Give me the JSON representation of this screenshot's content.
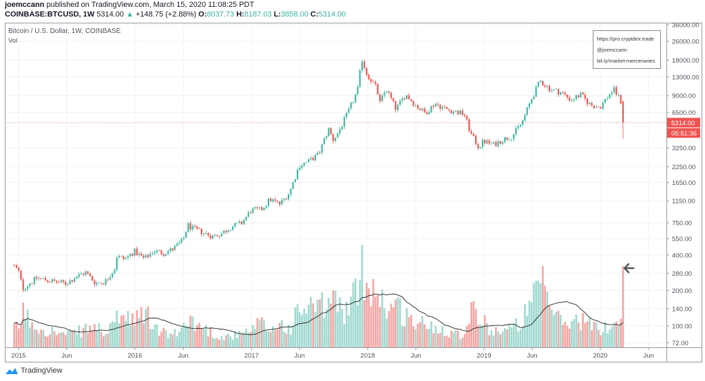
{
  "header": {
    "author": "joemccann",
    "published": "published on TradingView.com, March 15, 2020 11:08:25 PDT",
    "symbol": "COINBASE:BTCUSD, 1W",
    "last": "5314.00",
    "change": "+148.75 (+2.88%)",
    "o_label": "O:",
    "o_value": "8037.73",
    "h_label": "H:",
    "h_value": "8187.03",
    "l_label": "L:",
    "l_value": "3858.00",
    "c_label": "C:",
    "c_value": "5314.00",
    "change_icon": "triangle-up-icon"
  },
  "legend": {
    "title": "Bitcoin / U.S. Dollar, 1W, COINBASE",
    "vol": "Vol"
  },
  "info_box": [
    "https://pro.cryptdex.trade",
    "@joemccann",
    "bit.ly/market-mercenaries"
  ],
  "price_badge": {
    "price": "5314.00",
    "countdown": "05:51:36"
  },
  "annotation_icon": "arrow-left-icon",
  "footer": {
    "brand": "TradingView"
  },
  "colors": {
    "up": "#3cb8a0",
    "down": "#ef5350",
    "up_vol": "#9fd9cf",
    "down_vol": "#f3a5a3",
    "grid": "#eef0f3",
    "ma": "#222222"
  },
  "chart_data": {
    "type": "candlestick",
    "title": "Bitcoin / U.S. Dollar, 1W, COINBASE",
    "interval": "1W",
    "yscale": "log",
    "ylim": [
      72,
      36000
    ],
    "grid": true,
    "y_ticks": [
      36000,
      26000,
      18000,
      13000,
      9000,
      6500,
      3250,
      2250,
      1650,
      1150,
      750,
      550,
      400,
      280,
      200,
      140,
      100,
      72
    ],
    "y_tick_labels": [
      "36000.00",
      "26000.00",
      "18000.00",
      "13000.00",
      "9000.00",
      "6500.00",
      "3250.00",
      "2250.00",
      "1650.00",
      "1150.00",
      "750.00",
      "550.00",
      "400.00",
      "280.00",
      "200.00",
      "140.00",
      "100.00",
      "72.00"
    ],
    "x_ticks": [
      {
        "date": "2015-01-01",
        "label": "2015"
      },
      {
        "date": "2015-06-01",
        "label": "Jun"
      },
      {
        "date": "2016-01-01",
        "label": "2016"
      },
      {
        "date": "2016-06-01",
        "label": "Jun"
      },
      {
        "date": "2017-01-01",
        "label": "2017"
      },
      {
        "date": "2017-06-01",
        "label": "Jun"
      },
      {
        "date": "2018-01-01",
        "label": "2018"
      },
      {
        "date": "2018-06-01",
        "label": "Jun"
      },
      {
        "date": "2019-01-01",
        "label": "2019"
      },
      {
        "date": "2019-06-01",
        "label": "Jun"
      },
      {
        "date": "2020-01-01",
        "label": "2020"
      },
      {
        "date": "2020-06-01",
        "label": "Jun"
      }
    ],
    "x_range": [
      "2014-12-08",
      "2020-07-20"
    ],
    "price_anchors": [
      [
        "2014-12-15",
        330,
        20
      ],
      [
        "2015-01-05",
        280,
        28
      ],
      [
        "2015-01-12",
        205,
        45
      ],
      [
        "2015-01-31",
        225,
        35
      ],
      [
        "2015-02-28",
        255,
        25
      ],
      [
        "2015-03-31",
        245,
        22
      ],
      [
        "2015-04-30",
        235,
        18
      ],
      [
        "2015-05-31",
        230,
        15
      ],
      [
        "2015-06-30",
        262,
        18
      ],
      [
        "2015-07-31",
        285,
        22
      ],
      [
        "2015-08-31",
        230,
        25
      ],
      [
        "2015-09-30",
        237,
        18
      ],
      [
        "2015-10-31",
        312,
        25
      ],
      [
        "2015-11-04",
        390,
        45
      ],
      [
        "2015-11-30",
        370,
        35
      ],
      [
        "2015-12-31",
        430,
        30
      ],
      [
        "2016-01-31",
        370,
        45
      ],
      [
        "2016-02-29",
        435,
        25
      ],
      [
        "2016-03-31",
        415,
        18
      ],
      [
        "2016-04-30",
        450,
        15
      ],
      [
        "2016-05-31",
        530,
        22
      ],
      [
        "2016-06-15",
        720,
        45
      ],
      [
        "2016-06-30",
        670,
        30
      ],
      [
        "2016-07-31",
        625,
        25
      ],
      [
        "2016-08-31",
        575,
        18
      ],
      [
        "2016-09-30",
        610,
        12
      ],
      [
        "2016-10-31",
        700,
        15
      ],
      [
        "2016-11-30",
        740,
        15
      ],
      [
        "2016-12-31",
        960,
        20
      ],
      [
        "2017-01-31",
        965,
        30
      ],
      [
        "2017-02-28",
        1190,
        20
      ],
      [
        "2017-03-31",
        1080,
        30
      ],
      [
        "2017-04-30",
        1350,
        22
      ],
      [
        "2017-05-31",
        2300,
        45
      ],
      [
        "2017-06-30",
        2500,
        50
      ],
      [
        "2017-07-31",
        2870,
        45
      ],
      [
        "2017-08-31",
        4700,
        55
      ],
      [
        "2017-09-14",
        3800,
        60
      ],
      [
        "2017-09-30",
        4340,
        50
      ],
      [
        "2017-10-31",
        6450,
        45
      ],
      [
        "2017-11-30",
        10000,
        70
      ],
      [
        "2017-12-14",
        18500,
        95
      ],
      [
        "2017-12-28",
        14000,
        85
      ],
      [
        "2018-01-31",
        10200,
        70
      ],
      [
        "2018-02-06",
        7500,
        65
      ],
      [
        "2018-02-28",
        10300,
        50
      ],
      [
        "2018-03-31",
        6900,
        50
      ],
      [
        "2018-04-30",
        9250,
        40
      ],
      [
        "2018-05-31",
        7500,
        30
      ],
      [
        "2018-06-30",
        6400,
        28
      ],
      [
        "2018-07-31",
        7750,
        25
      ],
      [
        "2018-08-31",
        7000,
        22
      ],
      [
        "2018-09-30",
        6600,
        18
      ],
      [
        "2018-10-31",
        6300,
        15
      ],
      [
        "2018-11-20",
        4300,
        55
      ],
      [
        "2018-12-15",
        3300,
        35
      ],
      [
        "2018-12-31",
        3700,
        30
      ],
      [
        "2019-01-31",
        3450,
        20
      ],
      [
        "2019-02-28",
        3800,
        22
      ],
      [
        "2019-03-31",
        4100,
        22
      ],
      [
        "2019-04-30",
        5300,
        35
      ],
      [
        "2019-05-31",
        8550,
        50
      ],
      [
        "2019-06-26",
        12000,
        80
      ],
      [
        "2019-07-31",
        10100,
        50
      ],
      [
        "2019-08-31",
        9600,
        30
      ],
      [
        "2019-09-30",
        8300,
        30
      ],
      [
        "2019-10-31",
        9150,
        35
      ],
      [
        "2019-11-30",
        7550,
        28
      ],
      [
        "2019-12-31",
        7200,
        20
      ],
      [
        "2020-01-31",
        9350,
        28
      ],
      [
        "2020-02-12",
        10200,
        32
      ],
      [
        "2020-02-28",
        8700,
        30
      ],
      [
        "2020-03-02",
        8037.73,
        30
      ]
    ],
    "last_candle": {
      "date": "2020-03-09",
      "open": 8037.73,
      "high": 8187.03,
      "low": 3858.0,
      "close": 5314.0,
      "volume": 100
    },
    "volume_units": "relative (last week = 100)",
    "volume_ma_period": 20,
    "current_price": 5314.0
  }
}
